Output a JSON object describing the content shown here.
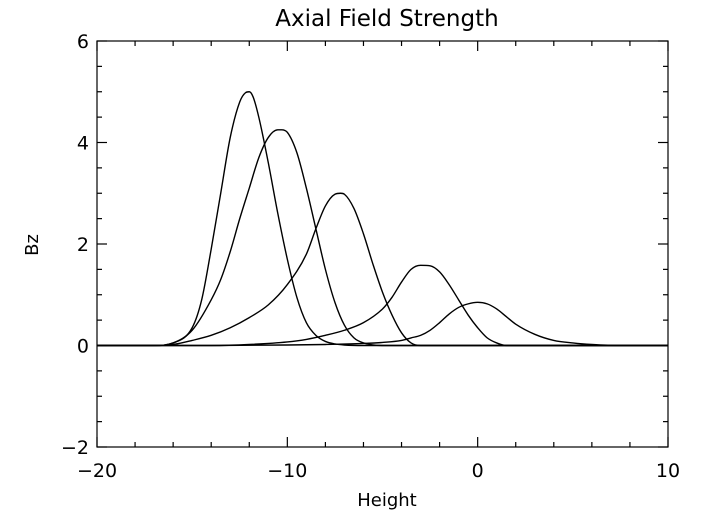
{
  "chart_data": {
    "type": "line",
    "title": "Axial Field Strength",
    "xlabel": "Height",
    "ylabel": "Bz",
    "xlim": [
      -20,
      10
    ],
    "ylim": [
      -2,
      6
    ],
    "x_ticks": [
      -20,
      -10,
      0,
      10
    ],
    "x_tick_labels": [
      "−20",
      "−10",
      "0",
      "10"
    ],
    "y_ticks": [
      -2,
      0,
      2,
      4,
      6
    ],
    "y_tick_labels": [
      "−2",
      "0",
      "2",
      "4",
      "6"
    ],
    "x_minor_step": 2,
    "y_minor_step": 0.5,
    "grid": false,
    "legend": "none",
    "series": [
      {
        "x": [
          -20,
          -17,
          -16,
          -15,
          -14.5,
          -14,
          -13.5,
          -13,
          -12.5,
          -12.2,
          -12,
          -11.8,
          -11.5,
          -11,
          -10.5,
          -10,
          -9.5,
          -9,
          -8.5,
          -8,
          -7.5,
          -7,
          -6,
          10
        ],
        "y": [
          0,
          0,
          0.05,
          0.35,
          0.9,
          1.9,
          3.0,
          4.1,
          4.8,
          4.98,
          5.0,
          4.9,
          4.5,
          3.6,
          2.6,
          1.7,
          0.95,
          0.45,
          0.2,
          0.08,
          0.03,
          0.01,
          0,
          0
        ]
      },
      {
        "x": [
          -20,
          -17,
          -16,
          -15,
          -14,
          -13.5,
          -13,
          -12.5,
          -12,
          -11.5,
          -11,
          -10.5,
          -10.3,
          -10,
          -9.5,
          -9,
          -8.5,
          -8,
          -7.5,
          -7,
          -6.5,
          -6,
          -5,
          10
        ],
        "y": [
          0,
          0,
          0.05,
          0.3,
          0.9,
          1.3,
          1.85,
          2.5,
          3.1,
          3.7,
          4.1,
          4.25,
          4.25,
          4.2,
          3.8,
          3.1,
          2.3,
          1.5,
          0.85,
          0.4,
          0.15,
          0.05,
          0,
          0
        ]
      },
      {
        "x": [
          -20,
          -17,
          -16,
          -15,
          -14,
          -13,
          -12,
          -11,
          -10,
          -9,
          -8.5,
          -8,
          -7.5,
          -7.2,
          -7,
          -6.5,
          -6,
          -5.5,
          -5,
          -4.5,
          -4,
          -3.5,
          -3,
          10
        ],
        "y": [
          0,
          0,
          0.02,
          0.1,
          0.2,
          0.35,
          0.55,
          0.8,
          1.2,
          1.8,
          2.3,
          2.75,
          2.98,
          3.0,
          2.98,
          2.7,
          2.2,
          1.6,
          1.05,
          0.6,
          0.25,
          0.05,
          0,
          0
        ]
      },
      {
        "x": [
          -20,
          -17,
          -14,
          -12,
          -10,
          -9,
          -8,
          -7,
          -6,
          -5,
          -4.5,
          -4,
          -3.5,
          -3,
          -2.5,
          -2,
          -1.5,
          -1,
          -0.5,
          0,
          0.5,
          1,
          1.5,
          10
        ],
        "y": [
          0,
          0,
          0,
          0.02,
          0.07,
          0.12,
          0.2,
          0.3,
          0.45,
          0.72,
          0.95,
          1.25,
          1.5,
          1.58,
          1.57,
          1.45,
          1.2,
          0.9,
          0.6,
          0.35,
          0.15,
          0.05,
          0,
          0
        ]
      },
      {
        "x": [
          -20,
          -14,
          -10,
          -8,
          -6,
          -5,
          -4,
          -3.5,
          -3,
          -2.5,
          -2,
          -1.5,
          -1,
          -0.5,
          0,
          0.5,
          1,
          1.5,
          2,
          3,
          4,
          5,
          6,
          7.5,
          10
        ],
        "y": [
          0,
          0,
          0.01,
          0.02,
          0.04,
          0.06,
          0.1,
          0.15,
          0.2,
          0.3,
          0.45,
          0.62,
          0.75,
          0.82,
          0.85,
          0.82,
          0.72,
          0.57,
          0.42,
          0.22,
          0.1,
          0.05,
          0.02,
          0,
          0
        ]
      }
    ]
  }
}
